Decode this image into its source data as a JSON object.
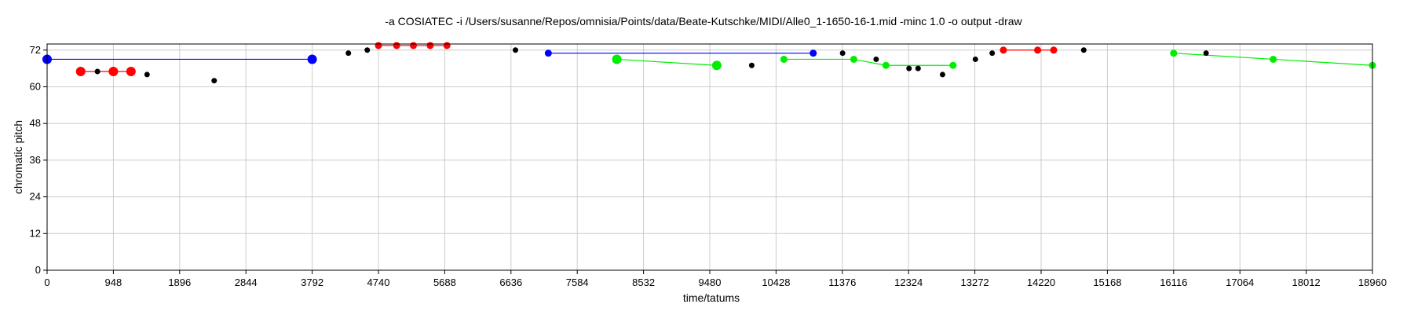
{
  "chart_data": {
    "type": "scatter",
    "title": "-a COSIATEC -i /Users/susanne/Repos/omnisia/Points/data/Beate-Kutschke/MIDI/Alle0_1-1650-16-1.mid -minc 1.0 -o output -draw",
    "xlabel": "time/tatums",
    "ylabel": "chromatic pitch",
    "xlim": [
      0,
      18960
    ],
    "ylim": [
      0,
      74
    ],
    "xticks": [
      0,
      948,
      1896,
      2844,
      3792,
      4740,
      5688,
      6636,
      7584,
      8532,
      9480,
      10428,
      11376,
      12324,
      13272,
      14220,
      15168,
      16116,
      17064,
      18012,
      18960
    ],
    "yticks": [
      0,
      12,
      24,
      36,
      48,
      60,
      72
    ],
    "grid": true,
    "colors": {
      "blue": "#0000ff",
      "red": "#ff0000",
      "green": "#00ee00",
      "black": "#000000",
      "grid": "#cccccc",
      "frame": "#000000"
    },
    "patterns": [
      {
        "color": "blue",
        "size": "large",
        "points": [
          [
            0,
            69
          ],
          [
            3792,
            69
          ]
        ]
      },
      {
        "color": "blue",
        "size": "medium",
        "points": [
          [
            7170,
            71
          ],
          [
            10960,
            71
          ]
        ]
      },
      {
        "color": "red",
        "size": "large",
        "points": [
          [
            480,
            65
          ],
          [
            948,
            65
          ],
          [
            1200,
            65
          ]
        ]
      },
      {
        "color": "red",
        "size": "medium",
        "points": [
          [
            4740,
            73.5
          ],
          [
            5000,
            73.5
          ],
          [
            5240,
            73.5
          ],
          [
            5480,
            73.5
          ],
          [
            5720,
            73.5
          ]
        ]
      },
      {
        "color": "red",
        "size": "medium",
        "points": [
          [
            13680,
            72
          ],
          [
            14170,
            72
          ],
          [
            14400,
            72
          ]
        ]
      },
      {
        "color": "green",
        "size": "large",
        "points": [
          [
            8150,
            69
          ],
          [
            9580,
            67
          ]
        ]
      },
      {
        "color": "green",
        "size": "medium",
        "points": [
          [
            10540,
            69
          ],
          [
            11540,
            69
          ],
          [
            12000,
            67
          ],
          [
            12960,
            67
          ]
        ]
      },
      {
        "color": "green",
        "size": "medium",
        "points": [
          [
            16116,
            71
          ],
          [
            17540,
            69
          ],
          [
            18960,
            67
          ]
        ]
      }
    ],
    "points": [
      [
        720,
        65
      ],
      [
        1430,
        64
      ],
      [
        2390,
        62
      ],
      [
        4310,
        71
      ],
      [
        4580,
        72
      ],
      [
        6700,
        72
      ],
      [
        10080,
        67
      ],
      [
        11380,
        71
      ],
      [
        11860,
        69
      ],
      [
        12330,
        66
      ],
      [
        12460,
        66
      ],
      [
        12810,
        64
      ],
      [
        13280,
        69
      ],
      [
        13520,
        71
      ],
      [
        14830,
        72
      ],
      [
        16580,
        71
      ]
    ]
  }
}
